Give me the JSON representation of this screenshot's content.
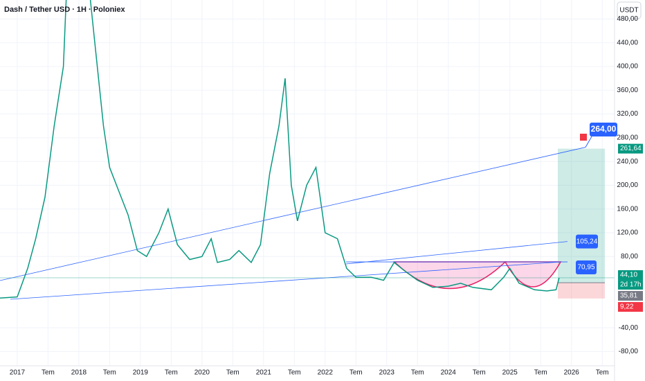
{
  "header": {
    "title": "Dash / Tether USD · 1H · Poloniex",
    "currency": "USDT"
  },
  "chart_data": {
    "type": "line",
    "series": [
      {
        "color": "#089981",
        "x": [
          2016.72,
          2017.0,
          2017.17,
          2017.3,
          2017.45,
          2017.6,
          2017.75,
          2017.95,
          2018.1,
          2018.25,
          2018.4,
          2018.5,
          2018.65,
          2018.8,
          2018.95,
          2019.1,
          2019.3,
          2019.45,
          2019.6,
          2019.8,
          2020.0,
          2020.15,
          2020.25,
          2020.45,
          2020.6,
          2020.8,
          2020.95,
          2021.1,
          2021.25,
          2021.35,
          2021.45,
          2021.55,
          2021.7,
          2021.85,
          2022.0,
          2022.2,
          2022.35,
          2022.5,
          2022.75,
          2022.95,
          2023.12,
          2023.3,
          2023.5,
          2023.75,
          2024.0,
          2024.2,
          2024.4,
          2024.7,
          2024.9,
          2025.0,
          2025.15,
          2025.4,
          2025.6,
          2025.75,
          2025.8
        ],
        "values": [
          10,
          12,
          60,
          110,
          180,
          300,
          400,
          900,
          600,
          450,
          300,
          230,
          190,
          150,
          90,
          80,
          120,
          160,
          100,
          75,
          80,
          110,
          70,
          75,
          90,
          70,
          100,
          220,
          300,
          380,
          200,
          140,
          200,
          230,
          120,
          110,
          60,
          45,
          45,
          40,
          70,
          55,
          40,
          28,
          30,
          35,
          28,
          24,
          45,
          60,
          35,
          24,
          22,
          24,
          44.1
        ]
      }
    ],
    "xlim": [
      2016.72,
      2026.7
    ],
    "ylim": [
      -104,
      512
    ],
    "xticks": [
      {
        "value": 2017,
        "label": "2017"
      },
      {
        "value": 2017.5,
        "label": "Tem"
      },
      {
        "value": 2018,
        "label": "2018"
      },
      {
        "value": 2018.5,
        "label": "Tem"
      },
      {
        "value": 2019,
        "label": "2019"
      },
      {
        "value": 2019.5,
        "label": "Tem"
      },
      {
        "value": 2020,
        "label": "2020"
      },
      {
        "value": 2020.5,
        "label": "Tem"
      },
      {
        "value": 2021,
        "label": "2021"
      },
      {
        "value": 2021.5,
        "label": "Tem"
      },
      {
        "value": 2022,
        "label": "2022"
      },
      {
        "value": 2022.5,
        "label": "Tem"
      },
      {
        "value": 2023,
        "label": "2023"
      },
      {
        "value": 2023.5,
        "label": "Tem"
      },
      {
        "value": 2024,
        "label": "2024"
      },
      {
        "value": 2024.5,
        "label": "Tem"
      },
      {
        "value": 2025,
        "label": "2025"
      },
      {
        "value": 2025.5,
        "label": "Tem"
      },
      {
        "value": 2026,
        "label": "2026"
      },
      {
        "value": 2026.5,
        "label": "Tem"
      }
    ],
    "yticks": [
      {
        "value": -80,
        "label": "-80,00"
      },
      {
        "value": -40,
        "label": "-40,00"
      },
      {
        "value": 80,
        "label": "80,00"
      },
      {
        "value": 120,
        "label": "120,00"
      },
      {
        "value": 160,
        "label": "160,00"
      },
      {
        "value": 200,
        "label": "200,00"
      },
      {
        "value": 240,
        "label": "240,00"
      },
      {
        "value": 280,
        "label": "280,00"
      },
      {
        "value": 320,
        "label": "320,00"
      },
      {
        "value": 360,
        "label": "360,00"
      },
      {
        "value": 400,
        "label": "400,00"
      },
      {
        "value": 440,
        "label": "440,00"
      },
      {
        "value": 480,
        "label": "480,00"
      }
    ],
    "grid": true,
    "annotations": {
      "target": {
        "value": 264,
        "label": "264,00"
      },
      "upper_level": {
        "value": 105.24,
        "label": "105,24"
      },
      "cup_level": {
        "value": 70.95,
        "label": "70,95"
      }
    },
    "position": {
      "target": {
        "value": 261.64,
        "label": "261,64"
      },
      "last": {
        "value": 44.1,
        "label": "44,10"
      },
      "countdown": "2d 17h",
      "entry": {
        "value": 35.81,
        "label": "35,81"
      },
      "stop": {
        "value": 9.22,
        "label": "9,22"
      }
    }
  }
}
